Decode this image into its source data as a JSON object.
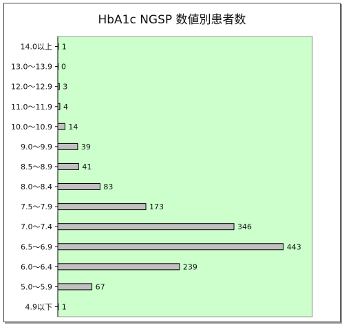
{
  "chart_data": {
    "type": "bar",
    "orientation": "horizontal",
    "title": "HbA1c NGSP 数値別患者数",
    "xlabel": "",
    "ylabel": "",
    "categories": [
      "14.0以上",
      "13.0～13.9",
      "12.0～12.9",
      "11.0～11.9",
      "10.0～10.9",
      "9.0～9.9",
      "8.5～8.9",
      "8.0～8.4",
      "7.5～7.9",
      "7.0～7.4",
      "6.5～6.9",
      "6.0～6.4",
      "5.0～5.9",
      "4.9以下"
    ],
    "values": [
      1,
      0,
      3,
      4,
      14,
      39,
      41,
      83,
      173,
      346,
      443,
      239,
      67,
      1
    ],
    "xlim": [
      0,
      500
    ],
    "grid": false,
    "legend": "none",
    "colors": {
      "plot_background": "#ccffcc",
      "bar_fill": "#c0c0c0",
      "bar_stroke": "#000000"
    }
  }
}
